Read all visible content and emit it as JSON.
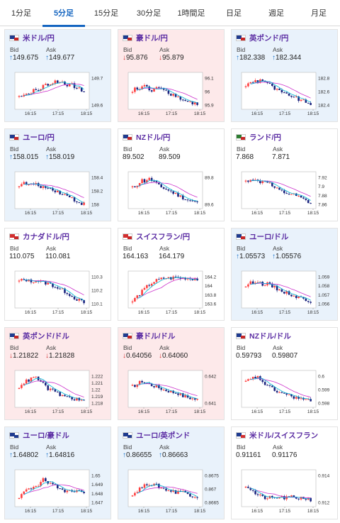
{
  "tabs": [
    {
      "label": "1分足",
      "active": false
    },
    {
      "label": "5分足",
      "active": true
    },
    {
      "label": "15分足",
      "active": false
    },
    {
      "label": "30分足",
      "active": false
    },
    {
      "label": "1時間足",
      "active": false
    },
    {
      "label": "日足",
      "active": false
    },
    {
      "label": "週足",
      "active": false
    },
    {
      "label": "月足",
      "active": false
    }
  ],
  "labels": {
    "bid": "Bid",
    "ask": "Ask"
  },
  "cards": [
    {
      "name": "米ドル/円",
      "trend": "up",
      "bid_arrow": "↑",
      "bid": "149.675",
      "ask_arrow": "↑",
      "ask": "149.677",
      "flag": [
        "#1f3b8f",
        "#c62828"
      ],
      "yticks": [
        "149.7",
        "149.6"
      ],
      "xticks": [
        "16:15",
        "17:15",
        "18:15"
      ]
    },
    {
      "name": "豪ドル/円",
      "trend": "down",
      "bid_arrow": "↓",
      "bid": "95.876",
      "ask_arrow": "↓",
      "ask": "95.879",
      "flag": [
        "#1f3b8f",
        "#c62828"
      ],
      "yticks": [
        "96.1",
        "96",
        "95.9"
      ],
      "xticks": [
        "16:15",
        "17:15",
        "18:15"
      ]
    },
    {
      "name": "英ポンド/円",
      "trend": "up",
      "bid_arrow": "↑",
      "bid": "182.338",
      "ask_arrow": "↑",
      "ask": "182.344",
      "flag": [
        "#1f3b8f",
        "#c62828"
      ],
      "yticks": [
        "182.8",
        "182.6",
        "182.4"
      ],
      "xticks": [
        "16:15",
        "17:15",
        "18:15"
      ]
    },
    {
      "name": "ユーロ/円",
      "trend": "up",
      "bid_arrow": "↑",
      "bid": "158.015",
      "ask_arrow": "↑",
      "ask": "158.019",
      "flag": [
        "#1f3b8f",
        "#c62828"
      ],
      "yticks": [
        "158.4",
        "158.2",
        "158"
      ],
      "xticks": [
        "16:15",
        "17:15",
        "18:15"
      ]
    },
    {
      "name": "NZドル/円",
      "trend": "neutral",
      "bid_arrow": "",
      "bid": "89.502",
      "ask_arrow": "",
      "ask": "89.509",
      "flag": [
        "#1f3b8f",
        "#c62828"
      ],
      "yticks": [
        "89.8",
        "89.6"
      ],
      "xticks": [
        "16:15",
        "17:15",
        "18:15"
      ]
    },
    {
      "name": "ランド/円",
      "trend": "neutral",
      "bid_arrow": "",
      "bid": "7.868",
      "ask_arrow": "",
      "ask": "7.871",
      "flag": [
        "#2e7d32",
        "#c62828"
      ],
      "yticks": [
        "7.92",
        "7.9",
        "7.88",
        "7.86"
      ],
      "xticks": [
        "16:15",
        "17:15",
        "18:15"
      ]
    },
    {
      "name": "カナダドル/円",
      "trend": "neutral",
      "bid_arrow": "",
      "bid": "110.075",
      "ask_arrow": "",
      "ask": "110.081",
      "flag": [
        "#d32f2f",
        "#c62828"
      ],
      "yticks": [
        "110.3",
        "110.2",
        "110.1"
      ],
      "xticks": [
        "16:15",
        "17:15",
        "18:15"
      ]
    },
    {
      "name": "スイスフラン/円",
      "trend": "neutral",
      "bid_arrow": "",
      "bid": "164.163",
      "ask_arrow": "",
      "ask": "164.179",
      "flag": [
        "#d32f2f",
        "#c62828"
      ],
      "yticks": [
        "164.2",
        "164",
        "163.8",
        "163.6"
      ],
      "xticks": [
        "16:15",
        "17:15",
        "18:15"
      ]
    },
    {
      "name": "ユーロ/ドル",
      "trend": "up",
      "bid_arrow": "↑",
      "bid": "1.05573",
      "ask_arrow": "↑",
      "ask": "1.05576",
      "flag": [
        "#1f3b8f",
        "#c62828"
      ],
      "yticks": [
        "1.059",
        "1.058",
        "1.057",
        "1.056"
      ],
      "xticks": [
        "16:15",
        "17:15",
        "18:15"
      ]
    },
    {
      "name": "英ポンド/ドル",
      "trend": "down",
      "bid_arrow": "↓",
      "bid": "1.21822",
      "ask_arrow": "↓",
      "ask": "1.21828",
      "flag": [
        "#1f3b8f",
        "#c62828"
      ],
      "yticks": [
        "1.222",
        "1.221",
        "1.22",
        "1.219",
        "1.218"
      ],
      "xticks": [
        "16:15",
        "17:15",
        "18:15"
      ]
    },
    {
      "name": "豪ドル/ドル",
      "trend": "down",
      "bid_arrow": "↓",
      "bid": "0.64056",
      "ask_arrow": "↓",
      "ask": "0.64060",
      "flag": [
        "#1f3b8f",
        "#c62828"
      ],
      "yticks": [
        "0.642",
        "0.641"
      ],
      "xticks": [
        "16:15",
        "17:15",
        "18:15"
      ]
    },
    {
      "name": "NZドル/ドル",
      "trend": "neutral",
      "bid_arrow": "",
      "bid": "0.59793",
      "ask_arrow": "",
      "ask": "0.59807",
      "flag": [
        "#1f3b8f",
        "#c62828"
      ],
      "yticks": [
        "0.6",
        "0.599",
        "0.598"
      ],
      "xticks": [
        "16:15",
        "17:15",
        "18:15"
      ]
    },
    {
      "name": "ユーロ/豪ドル",
      "trend": "up",
      "bid_arrow": "↑",
      "bid": "1.64802",
      "ask_arrow": "↑",
      "ask": "1.64816",
      "flag": [
        "#1f3b8f",
        "#1f3b8f"
      ],
      "yticks": [
        "1.65",
        "1.649",
        "1.648",
        "1.647"
      ],
      "xticks": [
        "16:15",
        "17:15",
        "18:15"
      ]
    },
    {
      "name": "ユーロ/英ポンド",
      "trend": "up",
      "bid_arrow": "↑",
      "bid": "0.86655",
      "ask_arrow": "↑",
      "ask": "0.86663",
      "flag": [
        "#1f3b8f",
        "#1f3b8f"
      ],
      "yticks": [
        "0.8675",
        "0.867",
        "0.8665"
      ],
      "xticks": [
        "16:15",
        "17:15",
        "18:15"
      ]
    },
    {
      "name": "米ドル/スイスフラン",
      "trend": "neutral",
      "bid_arrow": "",
      "bid": "0.91161",
      "ask_arrow": "",
      "ask": "0.91176",
      "flag": [
        "#1f3b8f",
        "#d32f2f"
      ],
      "yticks": [
        "0.914",
        "0.912"
      ],
      "xticks": [
        "16:15",
        "17:15",
        "18:15"
      ]
    }
  ],
  "colors": {
    "bull": "#ff3d3d",
    "bear": "#1a237e",
    "ma_fast": "#00b7d6",
    "ma_slow": "#cc33cc",
    "grid": "#cccccc"
  }
}
